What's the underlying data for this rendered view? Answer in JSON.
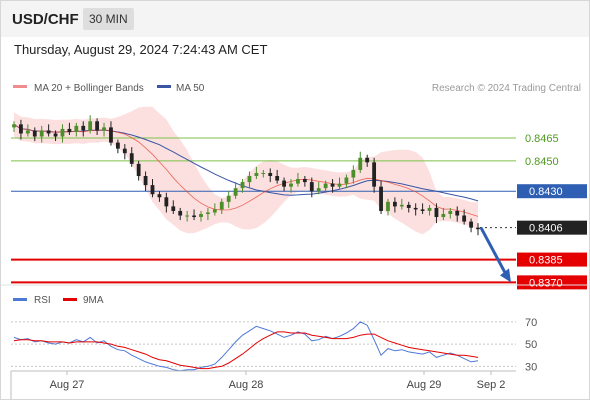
{
  "header": {
    "symbol": "USD/CHF",
    "timeframe": "30 MIN",
    "datetime": "Thursday, August 29, 2024 7:24:43 AM CET"
  },
  "colors": {
    "ma20": "#e8432e",
    "bollinger": "#f9c7c7",
    "ma50": "#3a55a4",
    "up": "#4a8f2a",
    "down": "#222222",
    "resistance": "#7cc247",
    "pivot": "#2f5fb3",
    "support": "#e40000",
    "rsi": "#4e78d6",
    "rsi_ma": "#e40000"
  },
  "chart_data": [
    {
      "type": "candlestick",
      "legend": {
        "placement": "top-left",
        "items": [
          {
            "name": "MA 20 + Bollinger Bands"
          },
          {
            "name": "MA 50"
          }
        ]
      },
      "watermark": "Research © 2024 Trading Central",
      "x_labels": [
        "Aug 27",
        "Aug 28",
        "Aug 29",
        "Sep 2"
      ],
      "ylim": [
        0.8363,
        0.8492
      ],
      "levels": [
        {
          "value": 0.8465,
          "label": "0.8465",
          "kind": "resistance"
        },
        {
          "value": 0.845,
          "label": "0.8450",
          "kind": "resistance"
        },
        {
          "value": 0.843,
          "label": "0.8430",
          "kind": "pivot"
        },
        {
          "value": 0.8406,
          "label": "0.8406",
          "kind": "last"
        },
        {
          "value": 0.8385,
          "label": "0.8385",
          "kind": "support"
        },
        {
          "value": 0.837,
          "label": "0.8370",
          "kind": "support"
        }
      ],
      "price_path": [
        0.8474,
        0.8468,
        0.847,
        0.8466,
        0.847,
        0.8468,
        0.8466,
        0.8471,
        0.8469,
        0.8473,
        0.847,
        0.8476,
        0.847,
        0.8472,
        0.8462,
        0.8458,
        0.8455,
        0.8448,
        0.844,
        0.8434,
        0.8428,
        0.8426,
        0.842,
        0.8417,
        0.8414,
        0.8414,
        0.8413,
        0.8415,
        0.8416,
        0.8418,
        0.8423,
        0.8427,
        0.8432,
        0.8436,
        0.844,
        0.8442,
        0.8442,
        0.844,
        0.8437,
        0.8433,
        0.8435,
        0.8438,
        0.8436,
        0.843,
        0.8432,
        0.8435,
        0.8433,
        0.8435,
        0.8439,
        0.8444,
        0.8452,
        0.8449,
        0.8433,
        0.8417,
        0.8423,
        0.842,
        0.8421,
        0.8419,
        0.8418,
        0.8417,
        0.8419,
        0.8413,
        0.8415,
        0.8417,
        0.8414,
        0.841,
        0.8406,
        0.8405
      ],
      "forecast": {
        "from": 0.8406,
        "to": 0.837
      }
    },
    {
      "type": "line",
      "legend": {
        "placement": "top-left",
        "items": [
          {
            "name": "RSI"
          },
          {
            "name": "9MA"
          }
        ]
      },
      "ylim": [
        24,
        78
      ],
      "y_ticks": [
        70,
        50,
        30
      ],
      "rsi": [
        56,
        54,
        55,
        52,
        53,
        51,
        50,
        52,
        51,
        54,
        52,
        56,
        51,
        53,
        48,
        45,
        44,
        40,
        37,
        34,
        32,
        30,
        29,
        27,
        26,
        27,
        27,
        29,
        30,
        32,
        38,
        45,
        52,
        58,
        62,
        66,
        64,
        62,
        59,
        56,
        58,
        61,
        59,
        53,
        54,
        57,
        55,
        57,
        60,
        64,
        70,
        67,
        54,
        40,
        46,
        44,
        45,
        43,
        42,
        41,
        43,
        38,
        40,
        42,
        40,
        37,
        34,
        35
      ],
      "rsi_ma": [
        53,
        54,
        54,
        53,
        53,
        52,
        52,
        52,
        51,
        52,
        52,
        52,
        52,
        51,
        50,
        48,
        47,
        45,
        43,
        41,
        38,
        36,
        35,
        33,
        31,
        30,
        29,
        28,
        28,
        29,
        30,
        33,
        37,
        41,
        46,
        51,
        55,
        58,
        61,
        61,
        60,
        60,
        60,
        58,
        57,
        56,
        55,
        55,
        55,
        56,
        58,
        59,
        59,
        56,
        53,
        51,
        49,
        47,
        46,
        45,
        44,
        43,
        42,
        41,
        40,
        40,
        39,
        38
      ]
    }
  ]
}
